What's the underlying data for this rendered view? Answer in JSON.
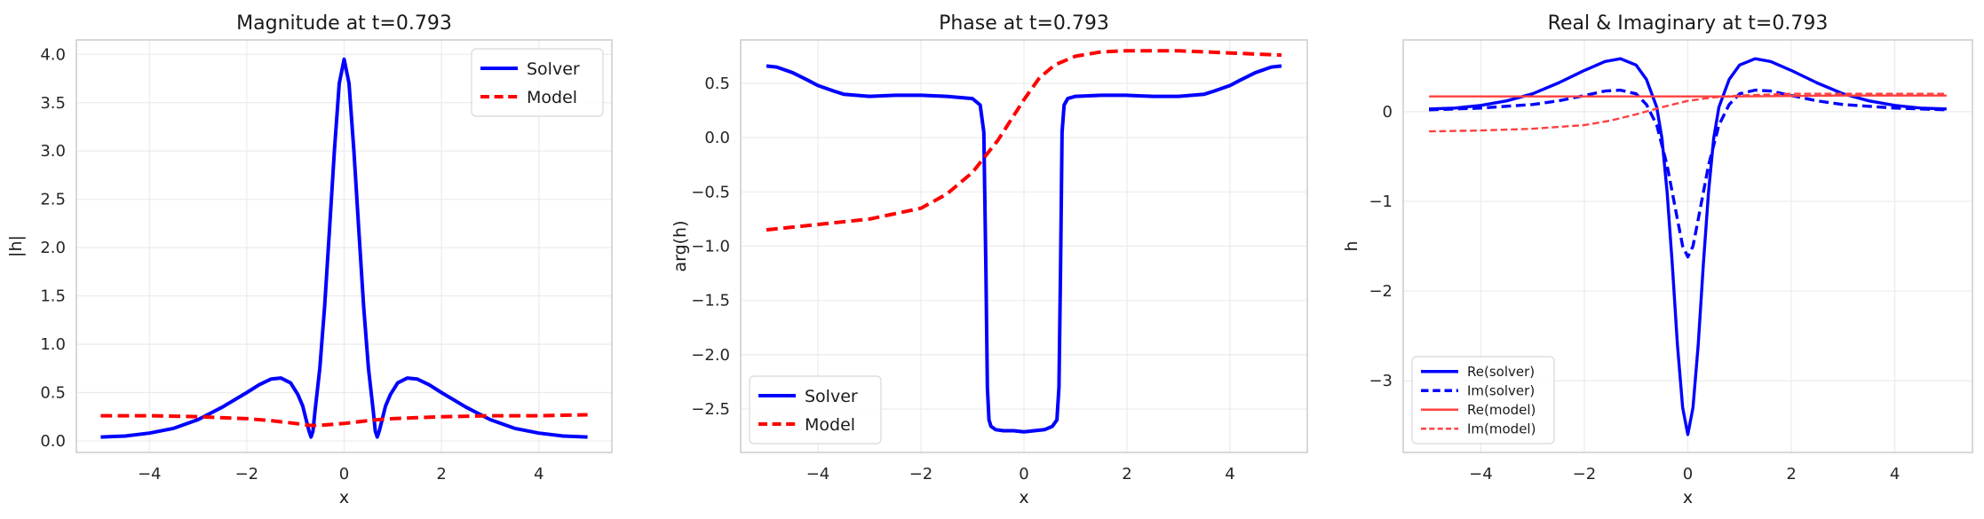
{
  "figure": {
    "background": "#ffffff",
    "grid_color": "#ebebeb",
    "spine_color": "#cccccc"
  },
  "chart_data": [
    {
      "type": "line",
      "title": "Magnitude at t=0.793",
      "xlabel": "x",
      "ylabel": "|h|",
      "xlim": [
        -5.5,
        5.5
      ],
      "ylim": [
        -0.12,
        4.15
      ],
      "xticks": [
        -4,
        -2,
        0,
        2,
        4
      ],
      "xtick_labels": [
        "−4",
        "−2",
        "0",
        "2",
        "4"
      ],
      "yticks": [
        0,
        0.5,
        1,
        1.5,
        2,
        2.5,
        3,
        3.5,
        4
      ],
      "ytick_labels": [
        "0.0",
        "0.5",
        "1.0",
        "1.5",
        "2.0",
        "2.5",
        "3.0",
        "3.5",
        "4.0"
      ],
      "grid": true,
      "legend": "top-right",
      "series": [
        {
          "name": "Solver",
          "color": "#0000ff",
          "dash": "solid",
          "width": "thick",
          "x": [
            -5,
            -4.5,
            -4,
            -3.5,
            -3,
            -2.5,
            -2,
            -1.75,
            -1.5,
            -1.3,
            -1.1,
            -0.95,
            -0.85,
            -0.78,
            -0.72,
            -0.68,
            -0.64,
            -0.6,
            -0.5,
            -0.4,
            -0.3,
            -0.2,
            -0.1,
            0,
            0.1,
            0.2,
            0.3,
            0.4,
            0.5,
            0.6,
            0.64,
            0.68,
            0.72,
            0.78,
            0.85,
            0.95,
            1.1,
            1.3,
            1.5,
            1.75,
            2,
            2.5,
            3,
            3.5,
            4,
            4.5,
            5
          ],
          "y": [
            0.04,
            0.05,
            0.08,
            0.13,
            0.22,
            0.35,
            0.5,
            0.58,
            0.64,
            0.65,
            0.6,
            0.48,
            0.36,
            0.22,
            0.1,
            0.04,
            0.1,
            0.3,
            0.75,
            1.4,
            2.2,
            3.0,
            3.7,
            3.95,
            3.7,
            3.0,
            2.2,
            1.4,
            0.75,
            0.3,
            0.1,
            0.04,
            0.1,
            0.22,
            0.36,
            0.48,
            0.6,
            0.65,
            0.64,
            0.58,
            0.5,
            0.35,
            0.22,
            0.13,
            0.08,
            0.05,
            0.04
          ]
        },
        {
          "name": "Model",
          "color": "#ff0000",
          "dash": "dashed",
          "width": "thick",
          "x": [
            -5,
            -4,
            -3,
            -2,
            -1.5,
            -1,
            -0.7,
            -0.5,
            0,
            0.5,
            0.7,
            1,
            1.5,
            2,
            3,
            4,
            5
          ],
          "y": [
            0.26,
            0.26,
            0.25,
            0.23,
            0.21,
            0.18,
            0.16,
            0.16,
            0.18,
            0.21,
            0.22,
            0.23,
            0.24,
            0.25,
            0.26,
            0.26,
            0.27
          ]
        }
      ]
    },
    {
      "type": "line",
      "title": "Phase at t=0.793",
      "xlabel": "x",
      "ylabel": "arg(h)",
      "xlim": [
        -5.5,
        5.5
      ],
      "ylim": [
        -2.9,
        0.9
      ],
      "xticks": [
        -4,
        -2,
        0,
        2,
        4
      ],
      "xtick_labels": [
        "−4",
        "−2",
        "0",
        "2",
        "4"
      ],
      "yticks": [
        -2.5,
        -2,
        -1.5,
        -1,
        -0.5,
        0,
        0.5
      ],
      "ytick_labels": [
        "−2.5",
        "−2.0",
        "−1.5",
        "−1.0",
        "−0.5",
        "0.0",
        "0.5"
      ],
      "grid": true,
      "legend": "bottom-left",
      "series": [
        {
          "name": "Solver",
          "color": "#0000ff",
          "dash": "solid",
          "width": "thick",
          "x": [
            -5,
            -4.8,
            -4.5,
            -4.2,
            -4,
            -3.7,
            -3.5,
            -3,
            -2.5,
            -2,
            -1.5,
            -1,
            -0.85,
            -0.78,
            -0.74,
            -0.71,
            -0.68,
            -0.64,
            -0.55,
            -0.4,
            -0.2,
            0,
            0.2,
            0.4,
            0.55,
            0.64,
            0.68,
            0.71,
            0.74,
            0.78,
            0.85,
            1,
            1.5,
            2,
            2.5,
            3,
            3.5,
            3.7,
            4,
            4.2,
            4.5,
            4.8,
            5
          ],
          "y": [
            0.66,
            0.65,
            0.6,
            0.53,
            0.48,
            0.43,
            0.4,
            0.38,
            0.39,
            0.39,
            0.38,
            0.36,
            0.3,
            0.05,
            -1.2,
            -2.3,
            -2.6,
            -2.66,
            -2.69,
            -2.7,
            -2.7,
            -2.71,
            -2.7,
            -2.69,
            -2.66,
            -2.6,
            -2.3,
            -1.2,
            0.05,
            0.3,
            0.36,
            0.38,
            0.39,
            0.39,
            0.38,
            0.38,
            0.4,
            0.43,
            0.48,
            0.53,
            0.6,
            0.65,
            0.66
          ]
        },
        {
          "name": "Model",
          "color": "#ff0000",
          "dash": "dashed",
          "width": "thick",
          "x": [
            -5,
            -4,
            -3,
            -2,
            -1.5,
            -1,
            -0.5,
            0,
            0.3,
            0.6,
            1,
            1.5,
            2,
            3,
            4,
            5
          ],
          "y": [
            -0.85,
            -0.8,
            -0.75,
            -0.65,
            -0.52,
            -0.32,
            -0.02,
            0.35,
            0.55,
            0.67,
            0.75,
            0.79,
            0.8,
            0.8,
            0.78,
            0.76
          ]
        }
      ]
    },
    {
      "type": "line",
      "title": "Real & Imaginary at t=0.793",
      "xlabel": "x",
      "ylabel": "h",
      "xlim": [
        -5.5,
        5.5
      ],
      "ylim": [
        -3.8,
        0.8
      ],
      "xticks": [
        -4,
        -2,
        0,
        2,
        4
      ],
      "xtick_labels": [
        "−4",
        "−2",
        "0",
        "2",
        "4"
      ],
      "yticks": [
        -3,
        -2,
        -1,
        0
      ],
      "ytick_labels": [
        "−3",
        "−2",
        "−1",
        "0"
      ],
      "grid": true,
      "legend": "bottom-left",
      "series": [
        {
          "name": "Re(solver)",
          "color": "#0000ff",
          "dash": "solid",
          "width": "medium",
          "x": [
            -5,
            -4.5,
            -4,
            -3.5,
            -3,
            -2.5,
            -2,
            -1.6,
            -1.3,
            -1.0,
            -0.8,
            -0.6,
            -0.5,
            -0.4,
            -0.3,
            -0.2,
            -0.1,
            0,
            0.1,
            0.2,
            0.3,
            0.4,
            0.5,
            0.6,
            0.8,
            1.0,
            1.3,
            1.6,
            2,
            2.5,
            3,
            3.5,
            4,
            4.5,
            5
          ],
          "y": [
            0.03,
            0.04,
            0.07,
            0.12,
            0.2,
            0.32,
            0.46,
            0.56,
            0.59,
            0.52,
            0.36,
            0.05,
            -0.3,
            -0.9,
            -1.7,
            -2.6,
            -3.3,
            -3.6,
            -3.3,
            -2.6,
            -1.7,
            -0.9,
            -0.3,
            0.05,
            0.36,
            0.52,
            0.59,
            0.56,
            0.46,
            0.32,
            0.2,
            0.12,
            0.07,
            0.04,
            0.03
          ]
        },
        {
          "name": "Im(solver)",
          "color": "#0000ff",
          "dash": "dashed",
          "width": "medium",
          "x": [
            -5,
            -4,
            -3,
            -2.5,
            -2,
            -1.6,
            -1.3,
            -1.0,
            -0.8,
            -0.6,
            -0.4,
            -0.2,
            -0.1,
            0,
            0.1,
            0.2,
            0.4,
            0.6,
            0.8,
            1.0,
            1.3,
            1.6,
            2,
            2.5,
            3,
            4,
            5
          ],
          "y": [
            0.02,
            0.04,
            0.08,
            0.12,
            0.18,
            0.23,
            0.24,
            0.2,
            0.08,
            -0.15,
            -0.6,
            -1.2,
            -1.5,
            -1.62,
            -1.5,
            -1.2,
            -0.6,
            -0.15,
            0.08,
            0.2,
            0.24,
            0.23,
            0.18,
            0.12,
            0.08,
            0.04,
            0.02
          ]
        },
        {
          "name": "Re(model)",
          "color": "#ff4040",
          "dash": "solid",
          "width": "thin",
          "x": [
            -5,
            -3,
            -1,
            0,
            1,
            3,
            5
          ],
          "y": [
            0.17,
            0.17,
            0.17,
            0.17,
            0.17,
            0.18,
            0.18
          ]
        },
        {
          "name": "Im(model)",
          "color": "#ff4040",
          "dash": "dashed",
          "width": "thin",
          "x": [
            -5,
            -4,
            -3,
            -2,
            -1.5,
            -1,
            -0.5,
            0,
            0.5,
            1,
            1.5,
            2,
            3,
            4,
            5
          ],
          "y": [
            -0.22,
            -0.21,
            -0.19,
            -0.15,
            -0.1,
            -0.03,
            0.05,
            0.12,
            0.16,
            0.18,
            0.19,
            0.2,
            0.2,
            0.2,
            0.2
          ]
        }
      ]
    }
  ]
}
